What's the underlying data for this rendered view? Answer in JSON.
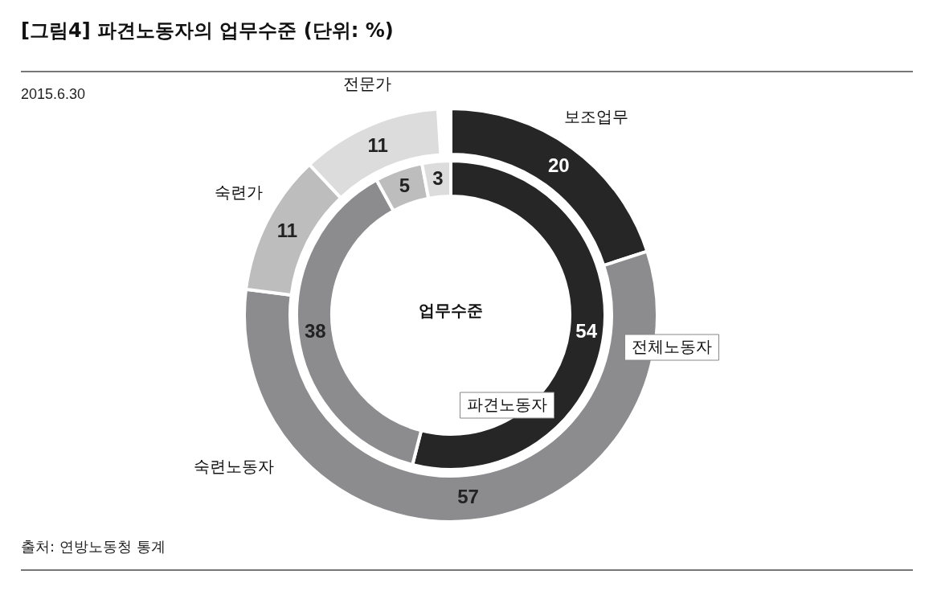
{
  "chart_data": {
    "type": "donut",
    "title": "[그림4] 파견노동자의 업무수준 (단위: %)",
    "subtitle": "2015.6.30",
    "categories": [
      "보조업무",
      "숙련노동자",
      "숙련가",
      "전문가"
    ],
    "colors": [
      "#262626",
      "#8c8c8e",
      "#bdbdbd",
      "#dcdcdc"
    ],
    "series": [
      {
        "name": "전체노동자",
        "values": [
          20,
          57,
          11,
          11
        ]
      },
      {
        "name": "파견노동자",
        "values": [
          54,
          38,
          5,
          3
        ]
      }
    ],
    "data_labels": true,
    "annotations": [
      "업무수준",
      "출처: 연방노동청 통계"
    ]
  }
}
